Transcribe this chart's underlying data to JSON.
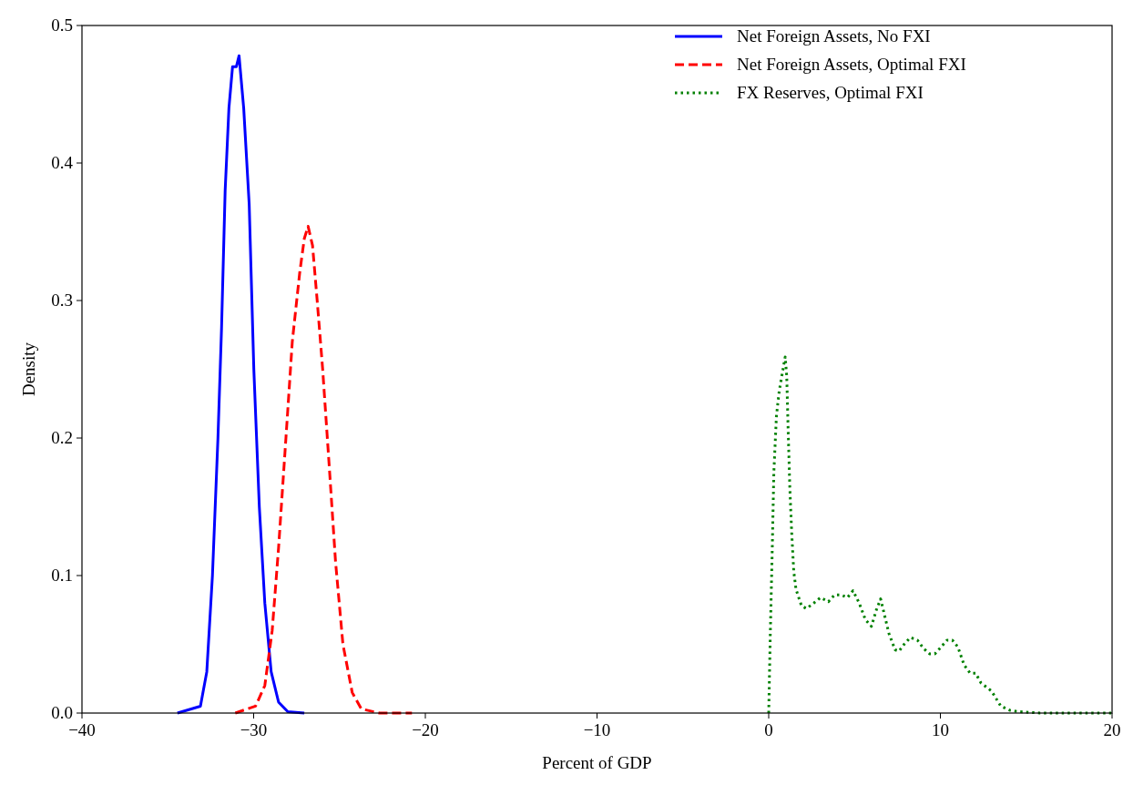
{
  "chart_data": {
    "type": "line",
    "xlabel": "Percent of GDP",
    "ylabel": "Density",
    "xlim": [
      -40,
      20
    ],
    "ylim": [
      0,
      0.5
    ],
    "xticks": [
      {
        "value": -40,
        "label": "−40"
      },
      {
        "value": -30,
        "label": "−30"
      },
      {
        "value": -20,
        "label": "−20"
      },
      {
        "value": -10,
        "label": "−10"
      },
      0,
      10,
      20
    ],
    "yticks": [
      {
        "value": 0,
        "label": "0.0"
      },
      0.1,
      0.2,
      0.3,
      0.4,
      0.5
    ],
    "legend": "top right",
    "grid": false,
    "series": [
      {
        "name": "Net Foreign Assets, No FXI",
        "color": "#0000ff",
        "line_style": "solid",
        "x": [
          -34.44,
          -33.1,
          -32.73,
          -32.4,
          -32.08,
          -31.87,
          -31.66,
          -31.44,
          -31.23,
          -31.01,
          -30.85,
          -30.58,
          -30.26,
          -29.99,
          -29.67,
          -29.35,
          -28.98,
          -28.55,
          -28.01,
          -27.05
        ],
        "values": [
          0,
          0.005,
          0.03,
          0.1,
          0.2,
          0.28,
          0.38,
          0.44,
          0.47,
          0.47,
          0.478,
          0.44,
          0.37,
          0.25,
          0.15,
          0.08,
          0.03,
          0.008,
          0.001,
          0
        ]
      },
      {
        "name": "Net Foreign Assets, Optimal FXI",
        "color": "#ff0000",
        "line_style": "dashed",
        "x": [
          -31.07,
          -29.89,
          -29.35,
          -28.92,
          -28.55,
          -28.12,
          -27.75,
          -27.32,
          -27.05,
          -26.83,
          -26.57,
          -26.3,
          -25.98,
          -25.6,
          -25.23,
          -24.8,
          -24.26,
          -23.73,
          -22.66,
          -20.78
        ],
        "values": [
          0,
          0.005,
          0.02,
          0.06,
          0.12,
          0.2,
          0.27,
          0.32,
          0.345,
          0.354,
          0.34,
          0.3,
          0.25,
          0.18,
          0.11,
          0.05,
          0.015,
          0.003,
          0,
          0
        ]
      },
      {
        "name": "FX Reserves, Optimal FXI",
        "color": "#008000",
        "line_style": "dotted",
        "x": [
          0,
          0.09,
          0.21,
          0.3,
          0.45,
          0.61,
          0.79,
          0.96,
          1.05,
          1.13,
          1.23,
          1.34,
          1.46,
          1.59,
          1.91,
          2.2,
          2.63,
          3.02,
          3.48,
          3.84,
          4.2,
          4.59,
          4.91,
          5.27,
          5.63,
          5.98,
          6.27,
          6.52,
          6.77,
          7.0,
          7.36,
          7.59,
          7.89,
          8.25,
          8.66,
          9.02,
          9.38,
          9.68,
          10.04,
          10.39,
          10.7,
          11.02,
          11.38,
          11.73,
          12.05,
          12.36,
          12.98,
          13.52,
          14.05,
          14.55,
          15.8,
          19.95
        ],
        "values": [
          0,
          0.056,
          0.121,
          0.175,
          0.216,
          0.234,
          0.247,
          0.259,
          0.245,
          0.207,
          0.164,
          0.131,
          0.103,
          0.09,
          0.078,
          0.076,
          0.08,
          0.084,
          0.081,
          0.086,
          0.086,
          0.084,
          0.089,
          0.08,
          0.068,
          0.063,
          0.075,
          0.083,
          0.07,
          0.058,
          0.046,
          0.045,
          0.05,
          0.055,
          0.053,
          0.047,
          0.043,
          0.043,
          0.048,
          0.053,
          0.053,
          0.048,
          0.035,
          0.029,
          0.029,
          0.022,
          0.016,
          0.005,
          0.002,
          0.001,
          0,
          0
        ]
      }
    ]
  }
}
